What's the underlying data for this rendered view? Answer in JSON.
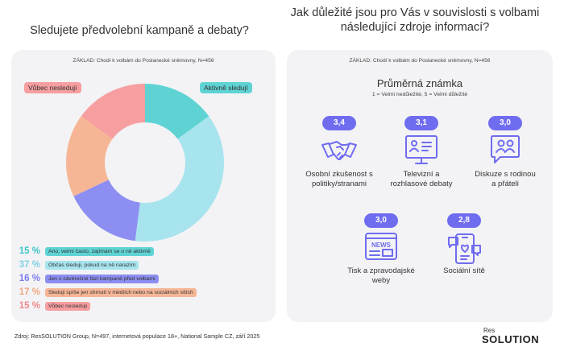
{
  "left_title": "Sledujete předvolební kampaně a debaty?",
  "right_title": "Jak důležité jsou pro Vás v souvislosti s volbami následující zdroje informací?",
  "left_base": "ZÁKLAD: Chodí k volbám do Poslanecké sněmovny, N=456",
  "right_base": "ZÁKLAD: Chodí k volbám do Poslanecké sněmovny, N=456",
  "pie_labels": {
    "active": "Aktivně sledují",
    "never": "Vůbec nesledují"
  },
  "colors": {
    "accent": "#6f6cf0",
    "icon": "#6f6cf0"
  },
  "chart_data": [
    {
      "type": "pie",
      "title": "Sledujete předvolební kampaně a debaty?",
      "unit": "%",
      "categories": [
        "Ano, velmi často, zajímám se o ně aktivně",
        "Občas sleduji, pokud na ně narazím",
        "Jen v závěrečné fázi kampaně před volbami",
        "Sleduji spíše jen shrnutí v médiích nebo na sociálních sítích",
        "Vůbec nesleduji"
      ],
      "values": [
        15,
        37,
        16,
        17,
        15
      ],
      "value_labels": [
        "15 %",
        "37 %",
        "16 %",
        "17 %",
        "15 %"
      ],
      "colors": [
        "#5fd3d4",
        "#a7e4ee",
        "#8d8ef1",
        "#f6b696",
        "#f69ea0"
      ],
      "legend_placement": "bottom"
    },
    {
      "type": "table",
      "title": "Průměrná známka",
      "subtitle": "1 = Velmi nedůležité, 5 = Velmi důležité",
      "items": [
        {
          "label": "Osobní zkušenost s politiky/stranami",
          "value": 3.4,
          "display": "3,4",
          "icon": "handshake-icon"
        },
        {
          "label": "Televizní a rozhlasové debaty",
          "value": 3.1,
          "display": "3,1",
          "icon": "tv-debate-icon"
        },
        {
          "label": "Diskuze s rodinou a přáteli",
          "value": 3.0,
          "display": "3,0",
          "icon": "chat-people-icon"
        },
        {
          "label": "Tisk a zpravodajské weby",
          "value": 3.0,
          "display": "3,0",
          "icon": "news-icon"
        },
        {
          "label": "Sociální sítě",
          "value": 2.8,
          "display": "2,8",
          "icon": "social-media-icon"
        }
      ]
    }
  ],
  "footer": {
    "source": "Zdroj: ResSOLUTION Group, N=497, internetová populace 18+, National Sample CZ, září 2025",
    "logo_top": "Res",
    "logo_bottom": "SOLUTION"
  }
}
